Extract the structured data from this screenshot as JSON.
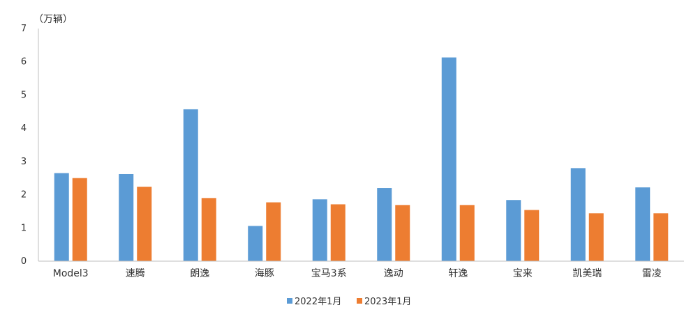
{
  "chart_data": {
    "type": "bar",
    "unit_label": "（万辆）",
    "categories": [
      "Model3",
      "速腾",
      "朗逸",
      "海豚",
      "宝马3系",
      "逸动",
      "轩逸",
      "宝来",
      "凯美瑞",
      "雷凌"
    ],
    "series": [
      {
        "name": "2022年1月",
        "color": "#5B9BD5",
        "values": [
          2.65,
          2.62,
          4.57,
          1.06,
          1.86,
          2.2,
          6.13,
          1.84,
          2.8,
          2.22
        ]
      },
      {
        "name": "2023年1月",
        "color": "#ED7D31",
        "values": [
          2.5,
          2.24,
          1.9,
          1.77,
          1.71,
          1.69,
          1.69,
          1.54,
          1.44,
          1.44
        ]
      }
    ],
    "ylim": [
      0,
      7
    ],
    "yticks": [
      0,
      1,
      2,
      3,
      4,
      5,
      6,
      7
    ],
    "legend_position": "bottom",
    "grid": false
  }
}
